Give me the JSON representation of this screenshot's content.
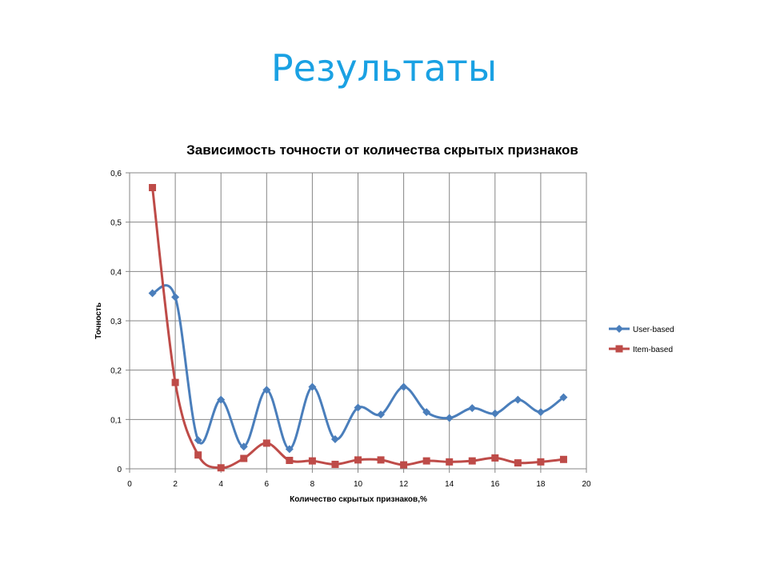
{
  "slide": {
    "title": "Результаты"
  },
  "chart_data": {
    "type": "line",
    "title": "Зависимость точности от количества скрытых признаков",
    "xlabel": "Количество  скрытых  признаков,%",
    "ylabel": "Точность",
    "xlim": [
      0,
      20
    ],
    "ylim": [
      0,
      0.6
    ],
    "x_ticks": [
      0,
      2,
      4,
      6,
      8,
      10,
      12,
      14,
      16,
      18,
      20
    ],
    "y_ticks": [
      0,
      0.1,
      0.2,
      0.3,
      0.4,
      0.5,
      0.6
    ],
    "x_tick_labels": [
      "0",
      "2",
      "4",
      "6",
      "8",
      "10",
      "12",
      "14",
      "16",
      "18",
      "20"
    ],
    "y_tick_labels": [
      "0",
      "0,1",
      "0,2",
      "0,3",
      "0,4",
      "0,5",
      "0,6"
    ],
    "grid": true,
    "legend_position": "right",
    "x": [
      1,
      2,
      3,
      4,
      5,
      6,
      7,
      8,
      9,
      10,
      11,
      12,
      13,
      14,
      15,
      16,
      17,
      18,
      19
    ],
    "series": [
      {
        "name": "User-based",
        "color": "#4a7ebb",
        "marker": "diamond",
        "values": [
          0.356,
          0.348,
          0.058,
          0.14,
          0.045,
          0.16,
          0.04,
          0.166,
          0.06,
          0.124,
          0.11,
          0.166,
          0.115,
          0.103,
          0.123,
          0.112,
          0.14,
          0.115,
          0.145
        ]
      },
      {
        "name": "Item-based",
        "color": "#be4b48",
        "marker": "square",
        "values": [
          0.57,
          0.175,
          0.028,
          0.002,
          0.021,
          0.052,
          0.017,
          0.016,
          0.009,
          0.018,
          0.018,
          0.008,
          0.016,
          0.014,
          0.016,
          0.022,
          0.012,
          0.014,
          0.019
        ]
      }
    ]
  }
}
